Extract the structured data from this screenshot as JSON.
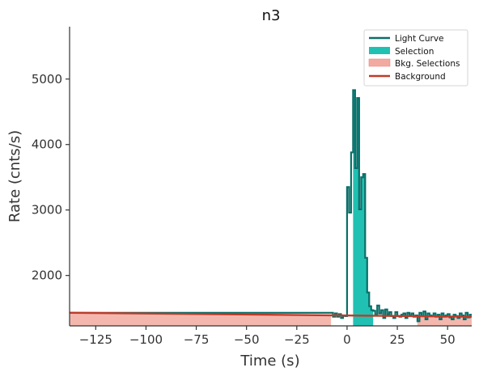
{
  "chart_data": {
    "type": "line",
    "title": "n3",
    "xlabel": "Time (s)",
    "ylabel": "Rate (cnts/s)",
    "xlim": [
      -138,
      62
    ],
    "ylim": [
      1230,
      5800
    ],
    "x_ticks": [
      -125,
      -100,
      -75,
      -50,
      -25,
      0,
      25,
      50
    ],
    "x_tick_labels": [
      "−125",
      "−100",
      "−75",
      "−50",
      "−25",
      "0",
      "25",
      "50"
    ],
    "y_ticks": [
      2000,
      3000,
      4000,
      5000
    ],
    "y_tick_labels": [
      "2000",
      "3000",
      "4000",
      "5000"
    ],
    "grid": false,
    "legend_position": "top-right",
    "colors": {
      "light_curve": "#0b6e68",
      "selection": "#20c1b3",
      "bkg_selection": "#f2aaa0",
      "background": "#bf3b28"
    },
    "series": [
      {
        "name": "Light Curve",
        "kind": "step",
        "x": [
          -138,
          -7,
          -6,
          -5,
          -4,
          -3,
          -2,
          -1,
          0,
          1,
          2,
          3,
          4,
          5,
          6,
          7,
          8,
          9,
          10,
          11,
          12,
          13,
          14,
          15,
          16,
          17,
          18,
          19,
          20,
          21,
          22,
          23,
          24,
          25,
          26,
          27,
          28,
          29,
          30,
          31,
          32,
          33,
          34,
          35,
          36,
          37,
          38,
          39,
          40,
          41,
          42,
          43,
          44,
          45,
          46,
          47,
          48,
          49,
          50,
          51,
          52,
          53,
          54,
          55,
          56,
          57,
          58,
          59,
          60,
          61
        ],
        "values": [
          1430,
          1370,
          1420,
          1370,
          1410,
          1350,
          1390,
          1380,
          3350,
          2960,
          3880,
          4830,
          3640,
          4710,
          3010,
          3500,
          3550,
          2270,
          1740,
          1530,
          1470,
          1460,
          1400,
          1540,
          1420,
          1470,
          1350,
          1480,
          1410,
          1440,
          1380,
          1350,
          1440,
          1380,
          1370,
          1400,
          1420,
          1350,
          1430,
          1390,
          1420,
          1370,
          1390,
          1300,
          1430,
          1380,
          1450,
          1330,
          1420,
          1390,
          1380,
          1420,
          1370,
          1400,
          1330,
          1420,
          1370,
          1390,
          1410,
          1360,
          1330,
          1400,
          1380,
          1350,
          1420,
          1390,
          1330,
          1430,
          1360,
          1400
        ]
      },
      {
        "name": "Background",
        "kind": "line",
        "x": [
          -138,
          62
        ],
        "values": [
          1430,
          1370
        ]
      }
    ],
    "regions": [
      {
        "name": "Selection",
        "x": [
          3,
          13
        ]
      },
      {
        "name": "Bkg. Selections",
        "x": [
          -138,
          -8
        ]
      },
      {
        "name": "Bkg. Selections",
        "x": [
          35,
          62
        ]
      }
    ],
    "legend": [
      "Light Curve",
      "Selection",
      "Bkg. Selections",
      "Background"
    ]
  }
}
